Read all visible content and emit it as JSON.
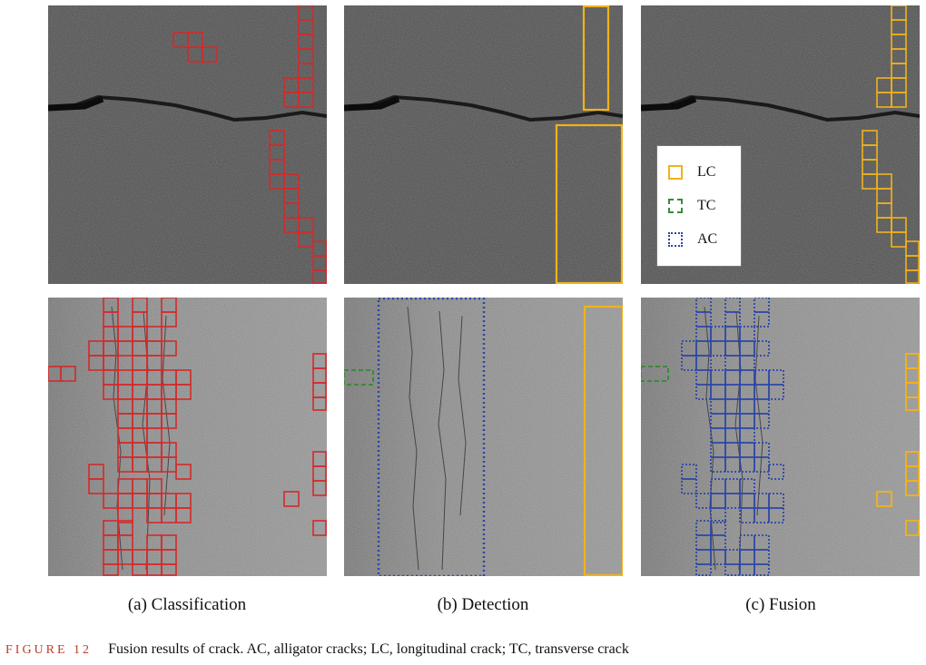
{
  "captions": {
    "classification": "(a) Classification",
    "detection": "(b) Detection",
    "fusion": "(c) Fusion"
  },
  "figure": {
    "label": "FIGURE 12",
    "text": "Fusion results of crack. AC, alligator cracks; LC, longitudinal crack; TC, transverse crack"
  },
  "legend": [
    {
      "code": "LC",
      "color": "#f1b21c",
      "style": "solid"
    },
    {
      "code": "TC",
      "color": "#3b8a3b",
      "style": "dashed"
    },
    {
      "code": "AC",
      "color": "#2b46a8",
      "style": "dotted"
    }
  ],
  "colors": {
    "classification_box": "#d42a2a",
    "lc": "#f1b21c",
    "tc": "#3b8a3b",
    "ac": "#2b46a8"
  }
}
